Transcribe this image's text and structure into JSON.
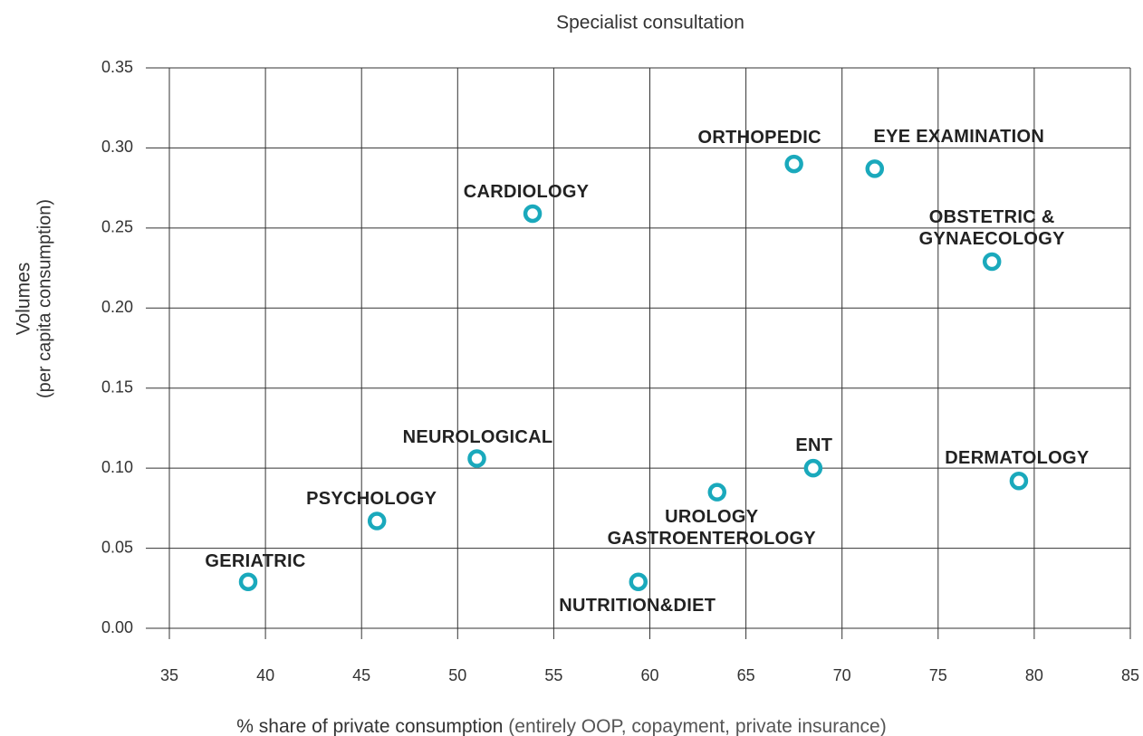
{
  "chart_data": {
    "type": "scatter",
    "title": "Specialist consultation",
    "xlabel": "% share of private consumption",
    "xlabel_note": "(entirely OOP, copayment, private insurance)",
    "ylabel": "Volumes",
    "ylabel_note": "(per capita consumption)",
    "labels": [
      "ORTHOPEDIC",
      "EYE EXAMINATION",
      "CARDIOLOGY",
      "OBSTETRIC &\nGYNAECOLOGY",
      "NEUROLOGICAL",
      "ENT",
      "DERMATOLOGY",
      "UROLOGY\nGASTROENTEROLOGY",
      "PSYCHOLOGY",
      "GERIATRIC",
      "NUTRITION&DIET"
    ],
    "x": [
      67.5,
      71.7,
      53.9,
      77.8,
      51.0,
      68.5,
      79.2,
      63.5,
      45.8,
      39.1,
      59.4
    ],
    "values": [
      0.29,
      0.287,
      0.259,
      0.229,
      0.106,
      0.1,
      0.092,
      0.085,
      0.067,
      0.029,
      0.029
    ],
    "color": "#1aa9bc",
    "xlim": [
      35,
      85
    ],
    "xticks": [
      35,
      40,
      45,
      50,
      55,
      60,
      65,
      70,
      75,
      80,
      85
    ],
    "ylim": [
      0,
      0.35
    ],
    "yticks": [
      {
        "value": 0,
        "label": "0.00"
      },
      {
        "value": 0.05,
        "label": "0.05"
      },
      {
        "value": 0.1,
        "label": "0.10"
      },
      {
        "value": 0.15,
        "label": "0.15"
      },
      {
        "value": 0.2,
        "label": "0.20"
      },
      {
        "value": 0.25,
        "label": "0.25"
      },
      {
        "value": 0.3,
        "label": "0.30"
      },
      {
        "value": 0.35,
        "label": "0.35"
      }
    ],
    "grid": true
  }
}
